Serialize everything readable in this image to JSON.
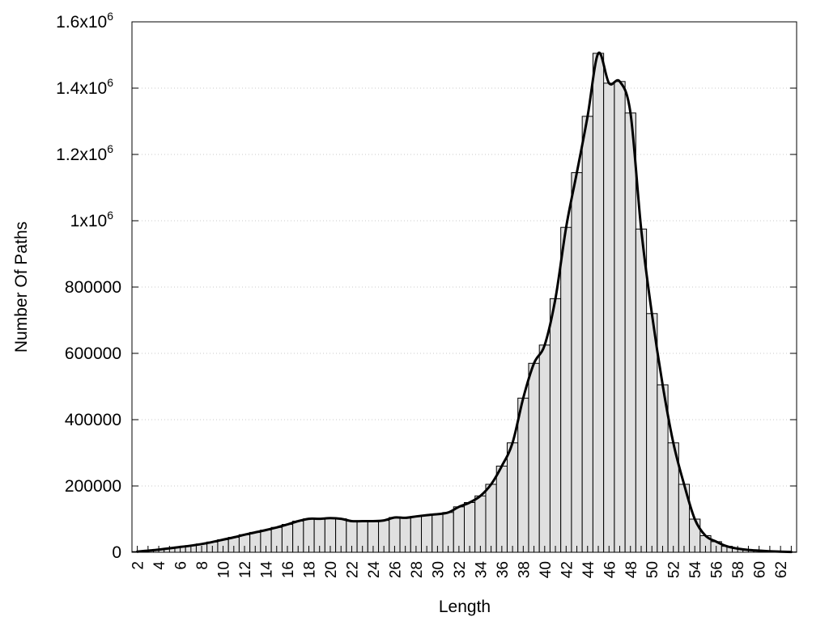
{
  "chart_data": {
    "type": "bar",
    "title": "",
    "xlabel": "Length",
    "ylabel": "Number Of Paths",
    "ylim": [
      0,
      1600000
    ],
    "grid": true,
    "grid_axis": "y",
    "overlay": "smoothed-line",
    "colors": {
      "bar_fill": "#e0e0e0",
      "bar_stroke": "#000000",
      "line": "#000000"
    },
    "y_ticks": [
      {
        "value": 0,
        "label": "0"
      },
      {
        "value": 200000,
        "label": "200000"
      },
      {
        "value": 400000,
        "label": "400000"
      },
      {
        "value": 600000,
        "label": "600000"
      },
      {
        "value": 800000,
        "label": "800000"
      },
      {
        "value": 1000000,
        "label": "1x10",
        "exp": "6"
      },
      {
        "value": 1200000,
        "label": "1.2x10",
        "exp": "6"
      },
      {
        "value": 1400000,
        "label": "1.4x10",
        "exp": "6"
      },
      {
        "value": 1600000,
        "label": "1.6x10",
        "exp": "6"
      }
    ],
    "x_ticks": [
      "2",
      "4",
      "6",
      "8",
      "10",
      "12",
      "14",
      "16",
      "18",
      "20",
      "22",
      "24",
      "26",
      "28",
      "30",
      "32",
      "34",
      "36",
      "38",
      "40",
      "42",
      "44",
      "46",
      "48",
      "50",
      "52",
      "54",
      "56",
      "58",
      "60",
      "62"
    ],
    "categories": [
      2,
      3,
      4,
      5,
      6,
      7,
      8,
      9,
      10,
      11,
      12,
      13,
      14,
      15,
      16,
      17,
      18,
      19,
      20,
      21,
      22,
      23,
      24,
      25,
      26,
      27,
      28,
      29,
      30,
      31,
      32,
      33,
      34,
      35,
      36,
      37,
      38,
      39,
      40,
      41,
      42,
      43,
      44,
      45,
      46,
      47,
      48,
      49,
      50,
      51,
      52,
      53,
      54,
      55,
      56,
      57,
      58,
      59,
      60,
      61,
      62,
      63
    ],
    "values": [
      2000,
      5000,
      8000,
      12000,
      16000,
      20000,
      25000,
      31000,
      38000,
      45000,
      53000,
      60000,
      67000,
      75000,
      84000,
      94000,
      101000,
      101000,
      103000,
      101000,
      94000,
      94000,
      94000,
      96000,
      105000,
      104000,
      108000,
      112000,
      115000,
      120000,
      137000,
      150000,
      170000,
      205000,
      260000,
      330000,
      465000,
      570000,
      625000,
      765000,
      980000,
      1145000,
      1315000,
      1505000,
      1415000,
      1420000,
      1325000,
      975000,
      720000,
      505000,
      330000,
      205000,
      100000,
      50000,
      32000,
      18000,
      11000,
      7000,
      5000,
      3000,
      2000,
      1000
    ]
  }
}
